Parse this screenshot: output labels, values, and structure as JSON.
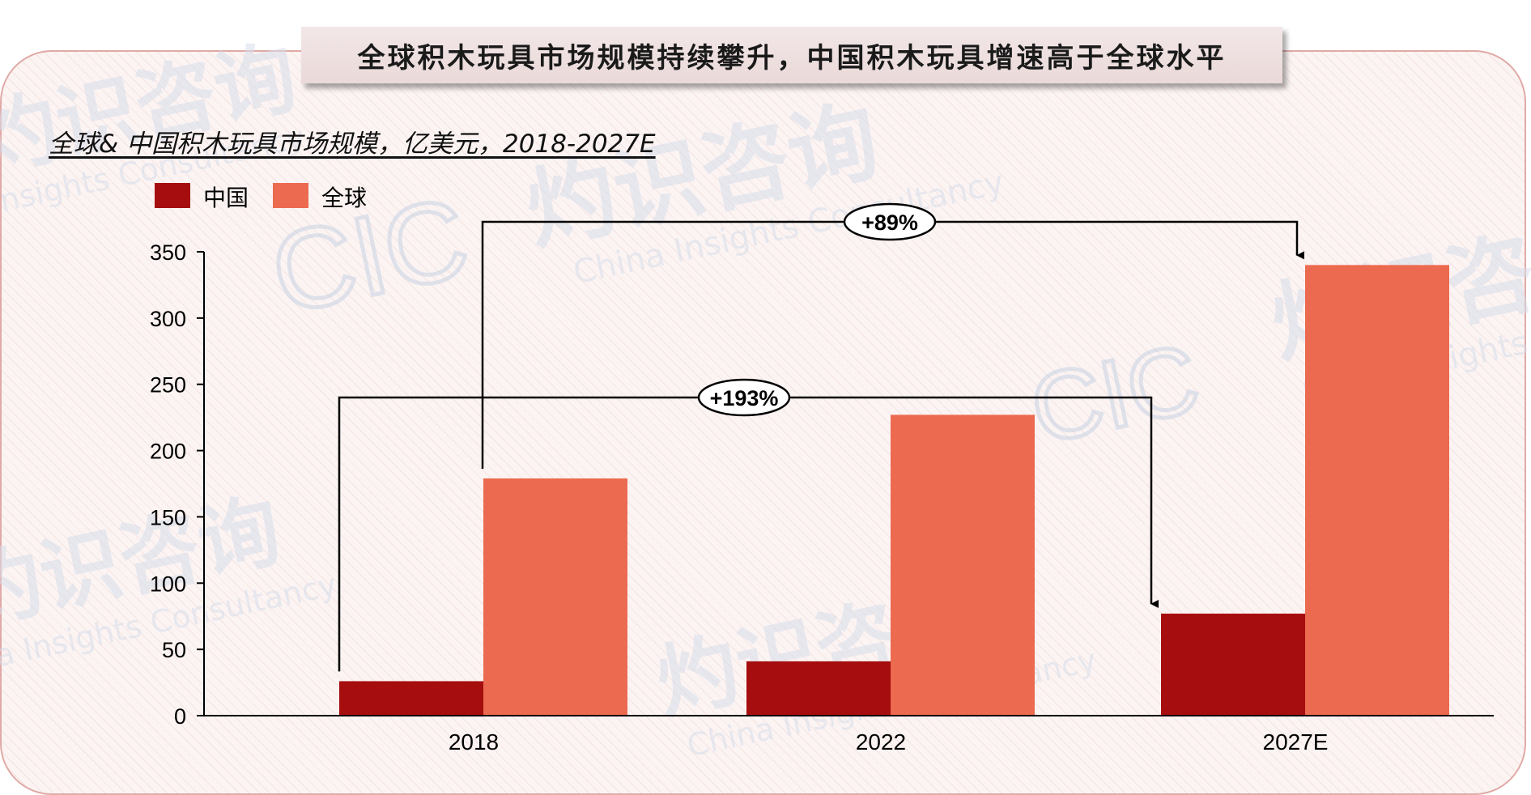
{
  "banner": {
    "title": "全球积木玩具市场规模持续攀升，中国积木玩具增速高于全球水平"
  },
  "chart_data": {
    "type": "bar",
    "subtitle": "全球& 中国积木玩具市场规模，亿美元，2018-2027E",
    "categories": [
      "2018",
      "2022",
      "2027E"
    ],
    "series": [
      {
        "name": "中国",
        "color": "#a50d0e",
        "values": [
          26,
          41,
          77
        ]
      },
      {
        "name": "全球",
        "color": "#ec6a50",
        "values": [
          179,
          227,
          340
        ]
      }
    ],
    "ylim": [
      0,
      350
    ],
    "yticks": [
      0,
      50,
      100,
      150,
      200,
      250,
      300,
      350
    ],
    "legend_position": "top-left",
    "grid": false,
    "annotations": [
      {
        "label": "+89%",
        "from_series": "全球",
        "from": "2018",
        "to": "2027E"
      },
      {
        "label": "+193%",
        "from_series": "中国",
        "from": "2018",
        "to": "2027E"
      }
    ]
  },
  "watermark": {
    "brand_cn": "灼识咨询",
    "brand_en": "China Insights Consultancy",
    "logo": "CIC",
    "color": "#c9d3e3"
  }
}
